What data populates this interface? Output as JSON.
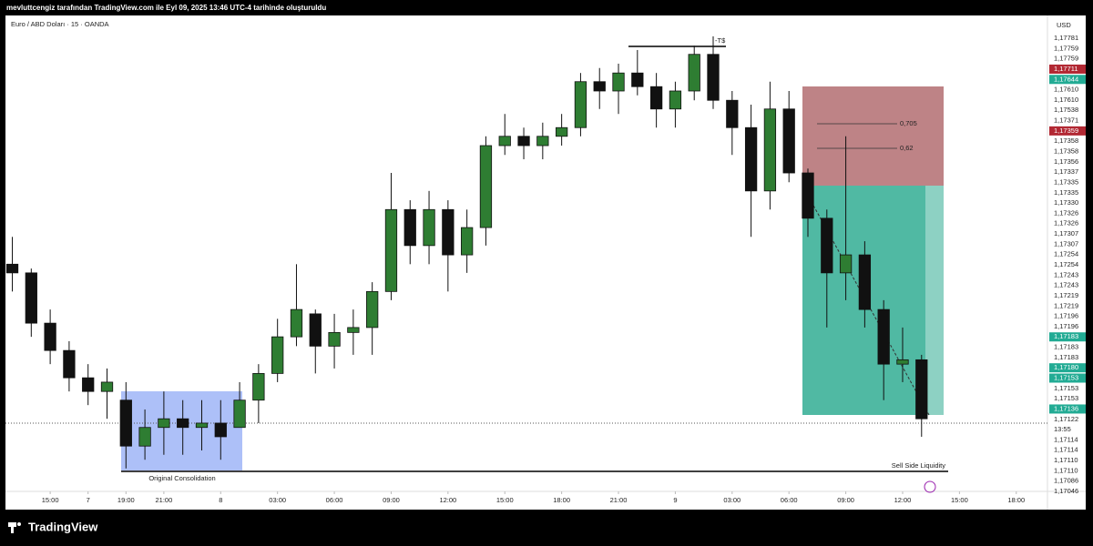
{
  "header": "mevluttcengiz tarafından TradingView.com ile Eyl 09, 2025 13:46 UTC-4 tarihinde oluşturuldu",
  "brand": "TradingView",
  "chart_data": {
    "type": "candlestick",
    "symbol": "Euro / ABD Doları · 15 · OANDA",
    "currency": "USD",
    "up_color": "#2e7d32",
    "down_color": "#111111",
    "categories": [
      null,
      null,
      null,
      null,
      null,
      null,
      null,
      null,
      null,
      null,
      null,
      null,
      null,
      null,
      null,
      null,
      null,
      null,
      null,
      null,
      null,
      null,
      null,
      null,
      null,
      null,
      null,
      null,
      null,
      null,
      null,
      null,
      null,
      null,
      null,
      null,
      null,
      null,
      null,
      null,
      null,
      null,
      null,
      null,
      null,
      null,
      null,
      null,
      null
    ],
    "open": [
      1.17416,
      1.17402,
      1.17321,
      1.17277,
      1.17233,
      1.17211,
      1.17197,
      1.17123,
      1.17153,
      1.17167,
      1.17153,
      1.1716,
      1.17153,
      1.17197,
      1.1724,
      1.17299,
      1.17336,
      1.17284,
      1.17306,
      1.17314,
      1.17372,
      1.17504,
      1.17446,
      1.17504,
      1.17431,
      1.17475,
      1.17607,
      1.17622,
      1.17607,
      1.17622,
      1.17636,
      1.1771,
      1.17695,
      1.17724,
      1.17702,
      1.17666,
      1.17695,
      1.17754,
      1.1768,
      1.17636,
      1.17534,
      1.17666,
      1.17563,
      1.1749,
      1.17402,
      1.17431,
      1.17343,
      1.17255,
      1.17262
    ],
    "high": [
      1.1746,
      1.17409,
      1.17343,
      1.17292,
      1.17255,
      1.17248,
      1.17226,
      1.17182,
      1.17211,
      1.17197,
      1.17197,
      1.17197,
      1.17226,
      1.17255,
      1.17328,
      1.17416,
      1.17343,
      1.17336,
      1.17343,
      1.17387,
      1.17563,
      1.17519,
      1.17534,
      1.17519,
      1.17504,
      1.17622,
      1.17658,
      1.17636,
      1.17644,
      1.17658,
      1.17724,
      1.17732,
      1.17739,
      1.17761,
      1.17724,
      1.1771,
      1.17768,
      1.17783,
      1.17695,
      1.17673,
      1.1771,
      1.17695,
      1.1757,
      1.17504,
      1.17622,
      1.17453,
      1.17358,
      1.17314,
      1.1727
    ],
    "low": [
      1.17372,
      1.17299,
      1.17255,
      1.17211,
      1.17189,
      1.17167,
      1.17087,
      1.17101,
      1.17109,
      1.17109,
      1.17116,
      1.17101,
      1.17153,
      1.1716,
      1.17226,
      1.17284,
      1.1724,
      1.17248,
      1.1727,
      1.1727,
      1.17358,
      1.17416,
      1.17416,
      1.17372,
      1.17402,
      1.17446,
      1.17592,
      1.17585,
      1.17585,
      1.17607,
      1.17622,
      1.17666,
      1.17658,
      1.17688,
      1.17636,
      1.17636,
      1.1768,
      1.17666,
      1.17592,
      1.1746,
      1.17504,
      1.17548,
      1.1746,
      1.17314,
      1.17358,
      1.17314,
      1.17197,
      1.17226,
      1.17138
    ],
    "close": [
      1.17402,
      1.17321,
      1.17277,
      1.17233,
      1.17211,
      1.17226,
      1.17123,
      1.17153,
      1.17167,
      1.17153,
      1.1716,
      1.17138,
      1.17197,
      1.1724,
      1.17299,
      1.17343,
      1.17284,
      1.17306,
      1.17314,
      1.17372,
      1.17504,
      1.17446,
      1.17504,
      1.17431,
      1.17475,
      1.17607,
      1.17622,
      1.17607,
      1.17622,
      1.17636,
      1.1771,
      1.17695,
      1.17724,
      1.17702,
      1.17666,
      1.17695,
      1.17754,
      1.1768,
      1.17636,
      1.17534,
      1.17666,
      1.17563,
      1.1749,
      1.17402,
      1.17431,
      1.17343,
      1.17255,
      1.17262,
      1.17167
    ],
    "ylim": [
      1.1705,
      1.1778
    ],
    "xlim": [
      -0.65,
      54.55
    ],
    "xticks": [
      {
        "value": 2,
        "label": "15:00"
      },
      {
        "value": 4,
        "label": "7"
      },
      {
        "value": 6,
        "label": "19:00"
      },
      {
        "value": 8,
        "label": "21:00"
      },
      {
        "value": 11,
        "label": "8"
      },
      {
        "value": 14,
        "label": "03:00"
      },
      {
        "value": 17,
        "label": "06:00"
      },
      {
        "value": 20,
        "label": "09:00"
      },
      {
        "value": 23,
        "label": "12:00"
      },
      {
        "value": 26,
        "label": "15:00"
      },
      {
        "value": 29,
        "label": "18:00"
      },
      {
        "value": 32,
        "label": "21:00"
      },
      {
        "value": 35,
        "label": "9"
      },
      {
        "value": 38,
        "label": "03:00"
      },
      {
        "value": 41,
        "label": "06:00"
      },
      {
        "value": 44,
        "label": "09:00"
      },
      {
        "value": 47,
        "label": "12:00"
      },
      {
        "value": 50,
        "label": "15:00"
      },
      {
        "value": 53,
        "label": "18:00"
      }
    ],
    "price_labels": [
      {
        "text": "1,17781"
      },
      {
        "text": "1,17759"
      },
      {
        "text": "1,17759"
      },
      {
        "text": "1,17711",
        "color": "#b22833"
      },
      {
        "text": "1,17644",
        "color": "#22ab94"
      },
      {
        "text": "1,17610"
      },
      {
        "text": "1,17610"
      },
      {
        "text": "1,17538"
      },
      {
        "text": "1,17371"
      },
      {
        "text": "1,17359",
        "color": "#b22833"
      },
      {
        "text": "1,17358"
      },
      {
        "text": "1,17358"
      },
      {
        "text": "1,17356"
      },
      {
        "text": "1,17337"
      },
      {
        "text": "1,17335"
      },
      {
        "text": "1,17335"
      },
      {
        "text": "1,17330"
      },
      {
        "text": "1,17326"
      },
      {
        "text": "1,17326"
      },
      {
        "text": "1,17307"
      },
      {
        "text": "1,17307"
      },
      {
        "text": "1,17254"
      },
      {
        "text": "1,17254"
      },
      {
        "text": "1,17243"
      },
      {
        "text": "1,17243"
      },
      {
        "text": "1,17219"
      },
      {
        "text": "1,17219"
      },
      {
        "text": "1,17196"
      },
      {
        "text": "1,17196"
      },
      {
        "text": "1,17183",
        "color": "#22ab94"
      },
      {
        "text": "1,17183"
      },
      {
        "text": "1,17183"
      },
      {
        "text": "1,17180",
        "color": "#22ab94"
      },
      {
        "text": "1,17153",
        "color": "#22ab94"
      },
      {
        "text": "1,17153"
      },
      {
        "text": "1,17153"
      },
      {
        "text": "1,17136",
        "color": "#22ab94"
      },
      {
        "text": "1,17122"
      },
      {
        "text": "13:55"
      },
      {
        "text": "1,17114"
      },
      {
        "text": "1,17114"
      },
      {
        "text": "1,17110"
      },
      {
        "text": "1,17110"
      },
      {
        "text": "1,17086"
      },
      {
        "text": "1,17046"
      }
    ],
    "annotations": {
      "consolidation": "Original Consolidation",
      "liquidity": "Sell Side Liquidity",
      "fib_1": "0,705",
      "fib_2": "0,62",
      "high_marker": "-T$"
    }
  }
}
